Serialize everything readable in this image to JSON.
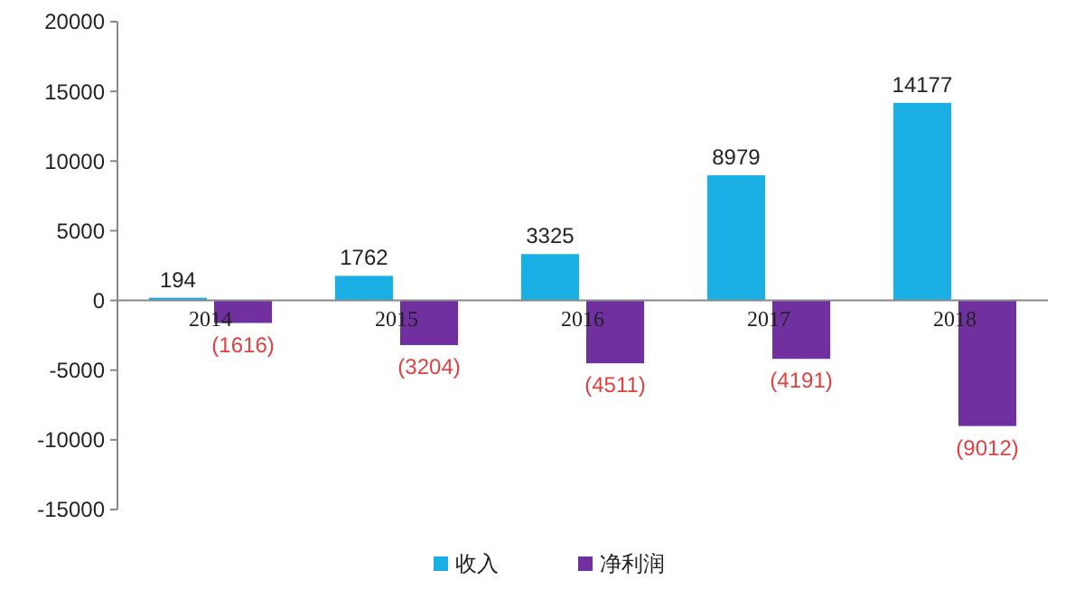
{
  "chart_data": {
    "type": "bar",
    "categories": [
      "2014",
      "2015",
      "2016",
      "2017",
      "2018"
    ],
    "series": [
      {
        "name": "收入",
        "color": "#1ab0e6",
        "values": [
          194,
          1762,
          3325,
          8979,
          14177
        ],
        "value_labels": [
          "194",
          "1762",
          "3325",
          "8979",
          "14177"
        ]
      },
      {
        "name": "净利润",
        "color": "#7030a0",
        "values": [
          -1616,
          -3204,
          -4511,
          -4191,
          -9012
        ],
        "value_labels": [
          "(1616)",
          "(3204)",
          "(4511)",
          "(4191)",
          "(9012)"
        ]
      }
    ],
    "ylim": [
      -15000,
      20000
    ],
    "yticks": [
      -15000,
      -10000,
      -5000,
      0,
      5000,
      10000,
      15000,
      20000
    ],
    "grid": false,
    "legend": "bottom"
  }
}
